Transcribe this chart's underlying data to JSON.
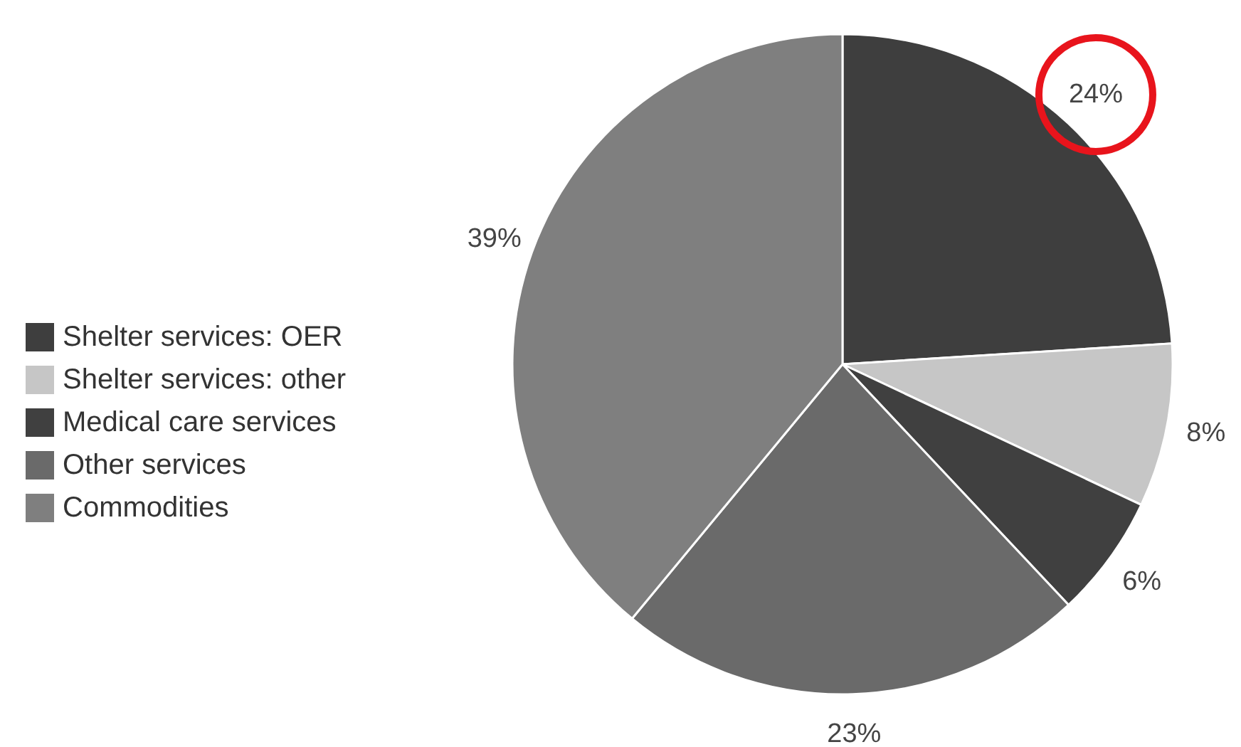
{
  "chart_data": {
    "type": "pie",
    "categories": [
      "Shelter services: OER",
      "Shelter services: other",
      "Medical care services",
      "Other services",
      "Commodities"
    ],
    "values": [
      24,
      8,
      6,
      23,
      39
    ],
    "colors": [
      "#3e3e3e",
      "#c6c6c6",
      "#404040",
      "#6a6a6a",
      "#7f7f7f"
    ],
    "value_labels": [
      "24%",
      "8%",
      "6%",
      "23%",
      "39%"
    ],
    "legend": "left"
  }
}
